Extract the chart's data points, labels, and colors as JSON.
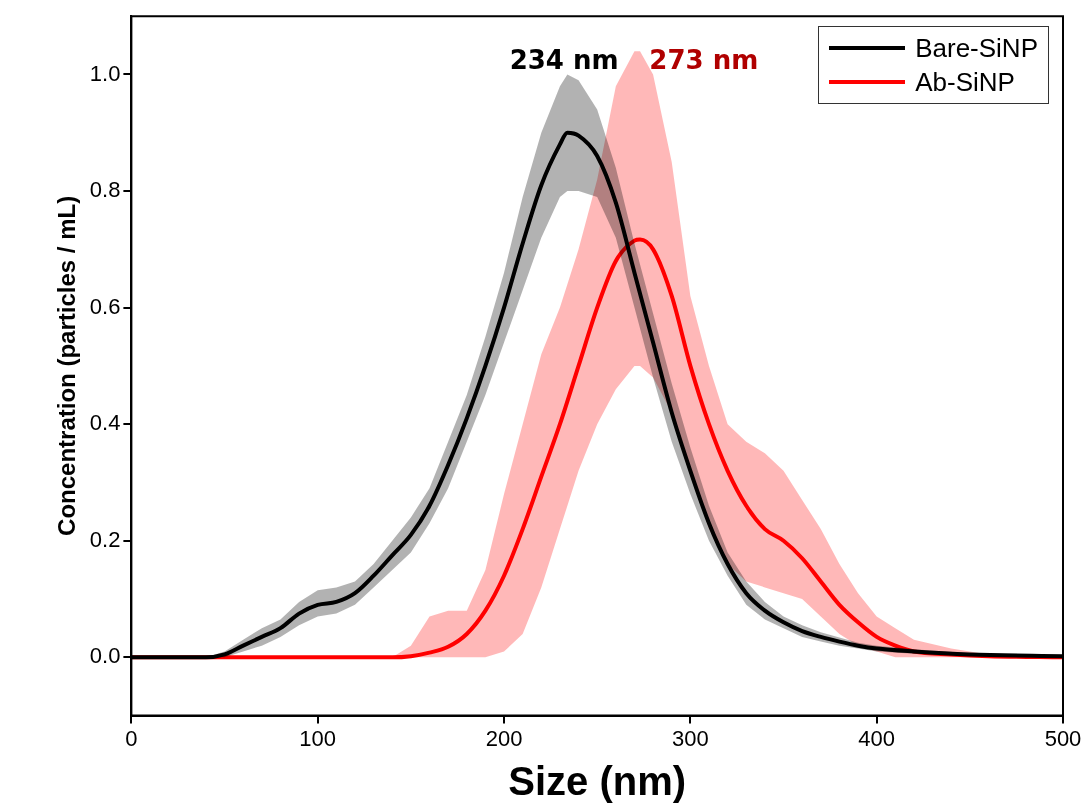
{
  "chart_data": {
    "type": "line",
    "xlabel": "Size (nm)",
    "ylabel": "Concentration (particles / mL)",
    "xlim": [
      0,
      500
    ],
    "xticks": [
      0,
      100,
      200,
      300,
      400,
      500
    ],
    "ylim": [
      -0.1,
      1.1
    ],
    "yticks": [
      {
        "value": 0,
        "label": "0.0"
      },
      {
        "value": 0.2,
        "label": "0.2"
      },
      {
        "value": 0.4,
        "label": "0.4"
      },
      {
        "value": 0.6,
        "label": "0.6"
      },
      {
        "value": 0.8,
        "label": "0.8"
      },
      {
        "value": 1,
        "label": "1.0"
      }
    ],
    "grid": false,
    "legend": "top right",
    "marker": "none",
    "line_style": "solid",
    "annotations": [
      "234 nm",
      "273 nm"
    ],
    "series": [
      {
        "name": "Bare-SiNP",
        "color": "#000000",
        "x": [
          0,
          20,
          40,
          50,
          60,
          70,
          80,
          90,
          100,
          110,
          120,
          130,
          140,
          150,
          160,
          170,
          180,
          190,
          200,
          210,
          220,
          230,
          234,
          240,
          250,
          260,
          270,
          280,
          290,
          300,
          310,
          320,
          330,
          340,
          350,
          360,
          370,
          380,
          390,
          400,
          420,
          450,
          500
        ],
        "values": [
          0,
          0,
          0,
          0.005,
          0.02,
          0.035,
          0.05,
          0.075,
          0.09,
          0.095,
          0.11,
          0.14,
          0.175,
          0.21,
          0.26,
          0.33,
          0.41,
          0.5,
          0.6,
          0.71,
          0.81,
          0.88,
          0.9,
          0.895,
          0.86,
          0.78,
          0.66,
          0.54,
          0.42,
          0.32,
          0.23,
          0.16,
          0.11,
          0.08,
          0.06,
          0.045,
          0.035,
          0.027,
          0.02,
          0.015,
          0.01,
          0.005,
          0.002
        ],
        "lower": [
          0,
          0,
          0,
          0,
          0.01,
          0.02,
          0.035,
          0.055,
          0.07,
          0.075,
          0.09,
          0.12,
          0.15,
          0.18,
          0.23,
          0.29,
          0.37,
          0.45,
          0.54,
          0.63,
          0.72,
          0.79,
          0.8,
          0.8,
          0.79,
          0.72,
          0.6,
          0.48,
          0.37,
          0.28,
          0.2,
          0.14,
          0.09,
          0.065,
          0.05,
          0.035,
          0.027,
          0.02,
          0.015,
          0.01,
          0.006,
          0.003,
          0
        ],
        "upper": [
          0,
          0,
          0,
          0.01,
          0.03,
          0.05,
          0.065,
          0.095,
          0.115,
          0.12,
          0.13,
          0.16,
          0.2,
          0.24,
          0.29,
          0.37,
          0.45,
          0.55,
          0.66,
          0.79,
          0.9,
          0.98,
          1,
          0.99,
          0.94,
          0.84,
          0.71,
          0.59,
          0.47,
          0.36,
          0.26,
          0.18,
          0.13,
          0.095,
          0.07,
          0.055,
          0.043,
          0.034,
          0.025,
          0.02,
          0.014,
          0.007,
          0.004
        ]
      },
      {
        "name": "Ab-SiNP",
        "color": "#ff0000",
        "x": [
          0,
          100,
          140,
          150,
          160,
          170,
          180,
          190,
          200,
          210,
          220,
          230,
          240,
          250,
          260,
          270,
          273,
          280,
          290,
          300,
          310,
          320,
          330,
          340,
          350,
          360,
          370,
          380,
          390,
          400,
          410,
          420,
          440,
          460,
          500
        ],
        "values": [
          0,
          0,
          0,
          0.002,
          0.008,
          0.018,
          0.04,
          0.08,
          0.14,
          0.22,
          0.31,
          0.4,
          0.5,
          0.6,
          0.68,
          0.715,
          0.717,
          0.7,
          0.62,
          0.5,
          0.4,
          0.32,
          0.26,
          0.22,
          0.2,
          0.17,
          0.13,
          0.09,
          0.06,
          0.035,
          0.02,
          0.01,
          0.005,
          0.002,
          0
        ],
        "lower": [
          0,
          0,
          0,
          0,
          0,
          0,
          0,
          0,
          0.01,
          0.04,
          0.12,
          0.22,
          0.32,
          0.4,
          0.46,
          0.5,
          0.5,
          0.48,
          0.42,
          0.32,
          0.22,
          0.16,
          0.13,
          0.12,
          0.11,
          0.1,
          0.07,
          0.04,
          0.02,
          0.01,
          0,
          0,
          0,
          0,
          0
        ],
        "upper": [
          0,
          0,
          0,
          0.02,
          0.07,
          0.08,
          0.08,
          0.15,
          0.28,
          0.4,
          0.52,
          0.6,
          0.7,
          0.82,
          0.98,
          1.04,
          1.04,
          1,
          0.85,
          0.62,
          0.5,
          0.4,
          0.37,
          0.35,
          0.32,
          0.27,
          0.22,
          0.16,
          0.11,
          0.07,
          0.05,
          0.03,
          0.015,
          0.005,
          0
        ]
      }
    ]
  }
}
